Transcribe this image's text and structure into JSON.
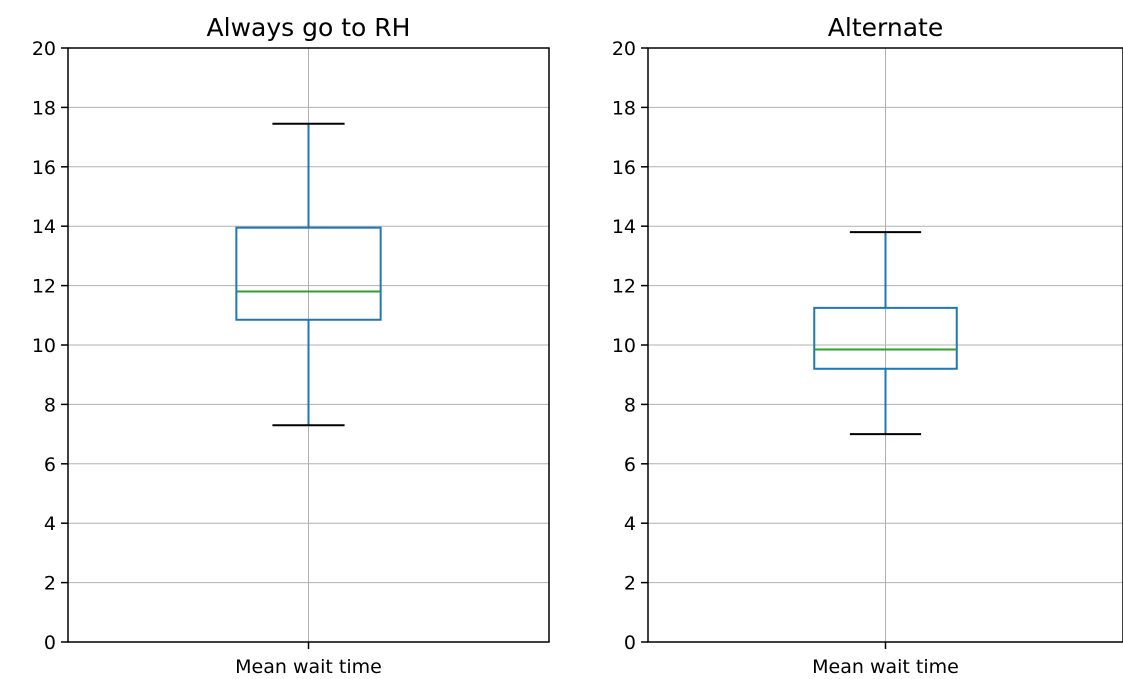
{
  "chart_data": [
    {
      "type": "box",
      "title": "Always go to RH",
      "xlabel": "",
      "ylabel": "",
      "categories": [
        "Mean wait time"
      ],
      "ylim": [
        0,
        20
      ],
      "yticks": [
        0,
        2,
        4,
        6,
        8,
        10,
        12,
        14,
        16,
        18,
        20
      ],
      "grid": true,
      "boxes": [
        {
          "label": "Mean wait time",
          "whisker_low": 7.3,
          "q1": 10.85,
          "median": 11.8,
          "q3": 13.95,
          "whisker_high": 17.45
        }
      ]
    },
    {
      "type": "box",
      "title": "Alternate",
      "xlabel": "",
      "ylabel": "",
      "categories": [
        "Mean wait time"
      ],
      "ylim": [
        0,
        20
      ],
      "yticks": [
        0,
        2,
        4,
        6,
        8,
        10,
        12,
        14,
        16,
        18,
        20
      ],
      "grid": true,
      "boxes": [
        {
          "label": "Mean wait time",
          "whisker_low": 7.0,
          "q1": 9.2,
          "median": 9.85,
          "q3": 11.25,
          "whisker_high": 13.8
        }
      ]
    }
  ],
  "colors": {
    "box": "#1f77b4",
    "median": "#2ca02c",
    "whisker_cap": "#000000",
    "grid": "#b0b0b0",
    "axis": "#000000"
  }
}
